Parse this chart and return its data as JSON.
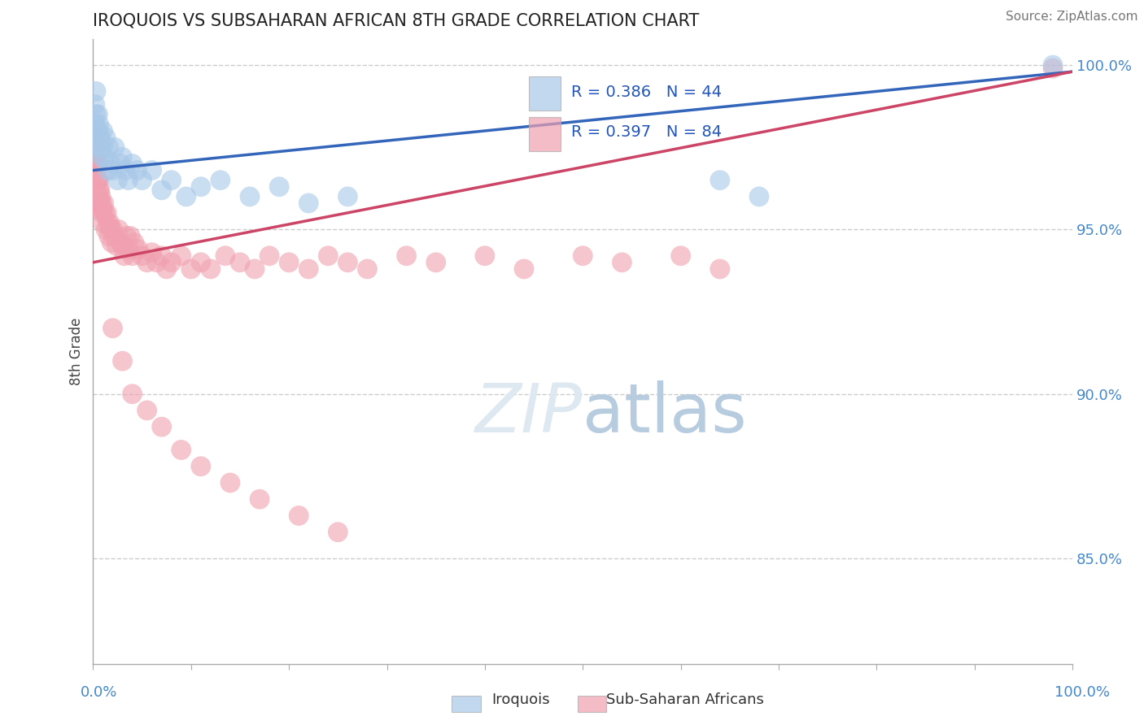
{
  "title": "IROQUOIS VS SUBSAHARAN AFRICAN 8TH GRADE CORRELATION CHART",
  "source": "Source: ZipAtlas.com",
  "ylabel": "8th Grade",
  "xlim": [
    0.0,
    1.0
  ],
  "ylim": [
    0.818,
    1.008
  ],
  "ytick_labels": [
    "85.0%",
    "90.0%",
    "95.0%",
    "100.0%"
  ],
  "ytick_values": [
    0.85,
    0.9,
    0.95,
    1.0
  ],
  "background_color": "#ffffff",
  "grid_color": "#cccccc",
  "iroquois_color": "#a8c8e8",
  "ssa_color": "#f0a0b0",
  "iroquois_line_color": "#3366bb",
  "ssa_line_color": "#cc4466",
  "watermark_text": "ZIPatlas",
  "watermark_color": "#dde8f0",
  "legend_R_iroquois": "0.386",
  "legend_N_iroquois": "44",
  "legend_R_ssa": "0.397",
  "legend_N_ssa": "84",
  "iroquois_line_x0": 0.0,
  "iroquois_line_y0": 0.968,
  "iroquois_line_x1": 1.0,
  "iroquois_line_y1": 0.998,
  "ssa_line_x0": 0.0,
  "ssa_line_y0": 0.94,
  "ssa_line_x1": 1.0,
  "ssa_line_y1": 0.998,
  "iroquois_x": [
    0.002,
    0.002,
    0.003,
    0.003,
    0.003,
    0.004,
    0.004,
    0.005,
    0.005,
    0.006,
    0.006,
    0.007,
    0.008,
    0.009,
    0.01,
    0.01,
    0.012,
    0.013,
    0.015,
    0.016,
    0.018,
    0.02,
    0.022,
    0.025,
    0.028,
    0.03,
    0.033,
    0.036,
    0.04,
    0.045,
    0.05,
    0.06,
    0.07,
    0.08,
    0.095,
    0.11,
    0.13,
    0.16,
    0.19,
    0.22,
    0.26,
    0.64,
    0.68,
    0.98
  ],
  "iroquois_y": [
    0.988,
    0.982,
    0.985,
    0.978,
    0.992,
    0.98,
    0.975,
    0.98,
    0.985,
    0.978,
    0.982,
    0.975,
    0.978,
    0.972,
    0.975,
    0.98,
    0.972,
    0.978,
    0.968,
    0.975,
    0.97,
    0.968,
    0.975,
    0.965,
    0.97,
    0.972,
    0.968,
    0.965,
    0.97,
    0.968,
    0.965,
    0.968,
    0.962,
    0.965,
    0.96,
    0.963,
    0.965,
    0.96,
    0.963,
    0.958,
    0.96,
    0.965,
    0.96,
    1.0
  ],
  "ssa_x": [
    0.001,
    0.002,
    0.002,
    0.003,
    0.003,
    0.003,
    0.004,
    0.004,
    0.005,
    0.005,
    0.005,
    0.006,
    0.006,
    0.006,
    0.007,
    0.007,
    0.008,
    0.008,
    0.009,
    0.009,
    0.01,
    0.01,
    0.011,
    0.012,
    0.013,
    0.014,
    0.015,
    0.016,
    0.017,
    0.018,
    0.019,
    0.02,
    0.022,
    0.024,
    0.026,
    0.028,
    0.03,
    0.032,
    0.034,
    0.036,
    0.038,
    0.04,
    0.042,
    0.046,
    0.05,
    0.055,
    0.06,
    0.065,
    0.07,
    0.075,
    0.08,
    0.09,
    0.1,
    0.11,
    0.12,
    0.135,
    0.15,
    0.165,
    0.18,
    0.2,
    0.22,
    0.24,
    0.26,
    0.28,
    0.32,
    0.35,
    0.4,
    0.44,
    0.5,
    0.54,
    0.6,
    0.64,
    0.02,
    0.03,
    0.04,
    0.055,
    0.07,
    0.09,
    0.11,
    0.14,
    0.17,
    0.21,
    0.25,
    0.98
  ],
  "ssa_y": [
    0.978,
    0.975,
    0.97,
    0.975,
    0.972,
    0.968,
    0.97,
    0.965,
    0.97,
    0.965,
    0.96,
    0.965,
    0.958,
    0.962,
    0.958,
    0.962,
    0.956,
    0.96,
    0.955,
    0.958,
    0.956,
    0.952,
    0.958,
    0.955,
    0.95,
    0.955,
    0.952,
    0.948,
    0.952,
    0.95,
    0.946,
    0.95,
    0.948,
    0.945,
    0.95,
    0.946,
    0.945,
    0.942,
    0.948,
    0.944,
    0.948,
    0.942,
    0.946,
    0.944,
    0.942,
    0.94,
    0.943,
    0.94,
    0.942,
    0.938,
    0.94,
    0.942,
    0.938,
    0.94,
    0.938,
    0.942,
    0.94,
    0.938,
    0.942,
    0.94,
    0.938,
    0.942,
    0.94,
    0.938,
    0.942,
    0.94,
    0.942,
    0.938,
    0.942,
    0.94,
    0.942,
    0.938,
    0.92,
    0.91,
    0.9,
    0.895,
    0.89,
    0.883,
    0.878,
    0.873,
    0.868,
    0.863,
    0.858,
    0.999
  ]
}
